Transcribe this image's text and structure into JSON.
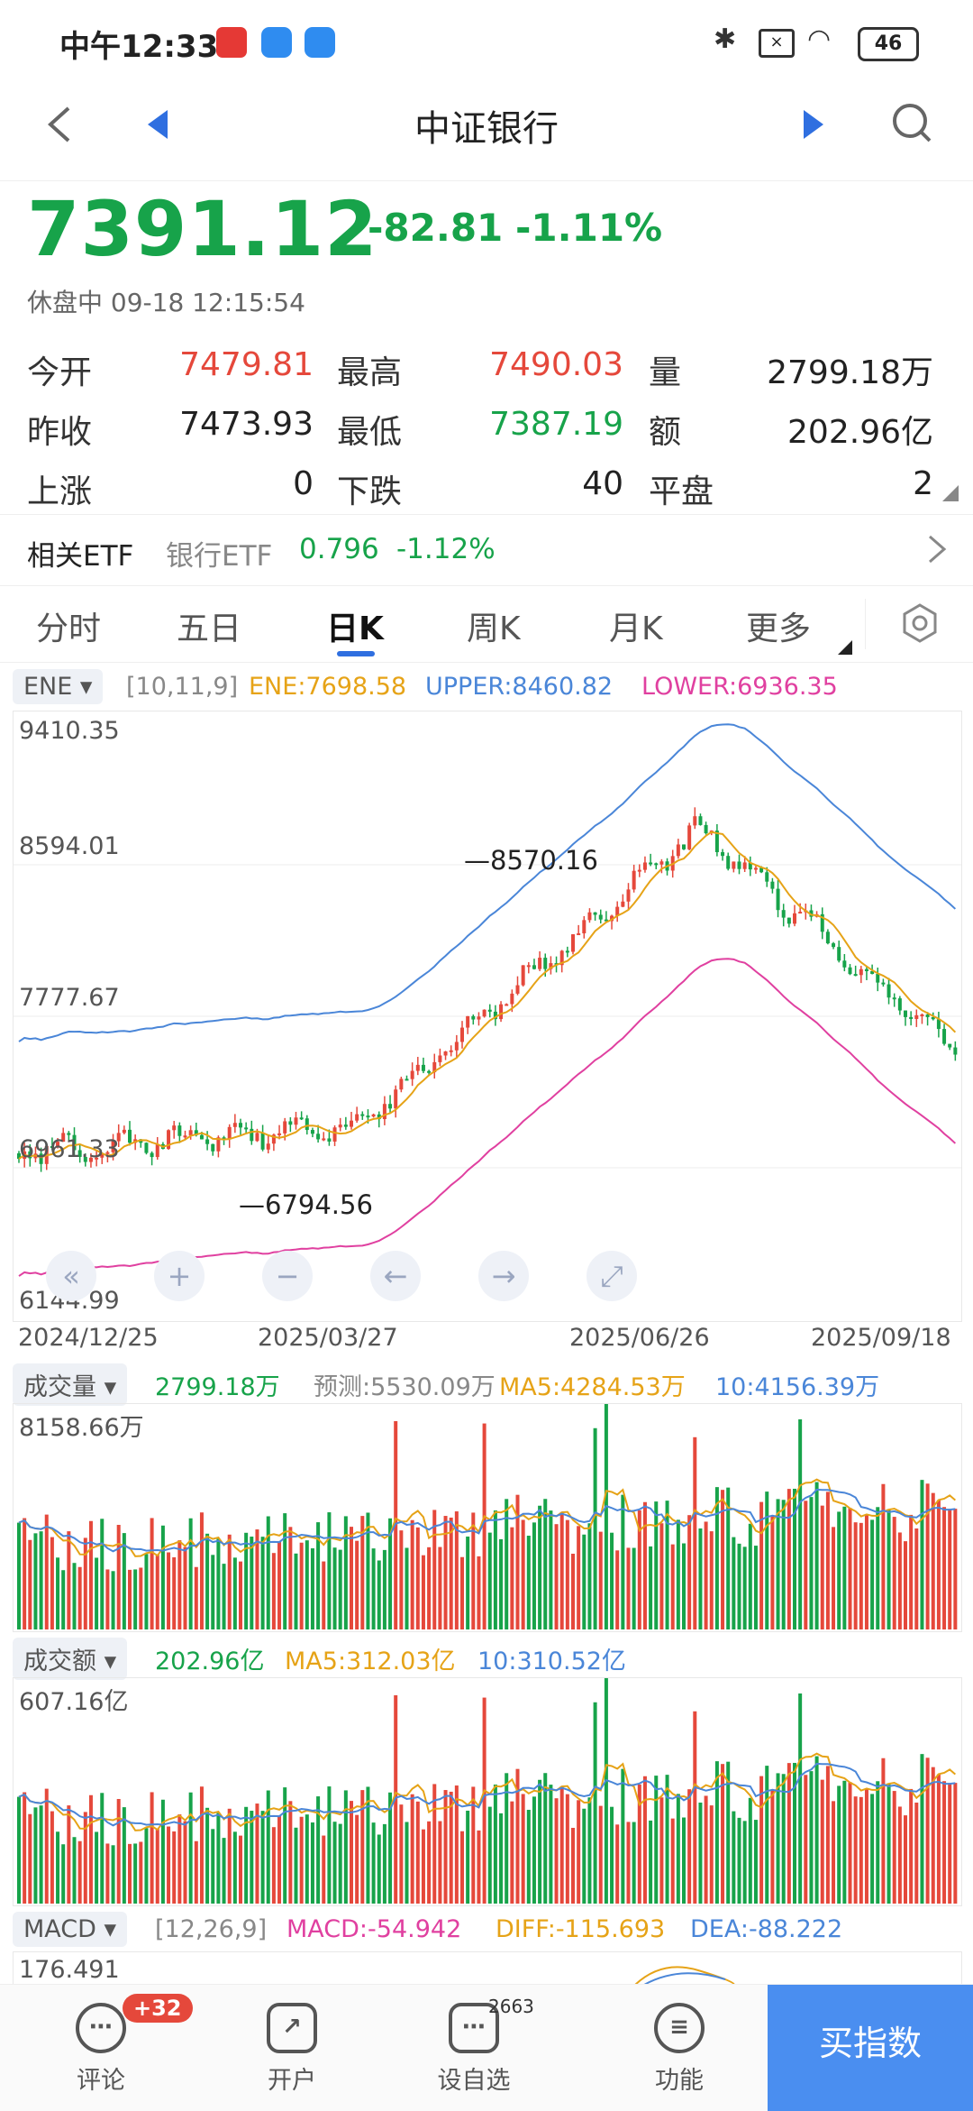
{
  "status_bar": {
    "time": "中午12:33",
    "battery": "46"
  },
  "nav": {
    "title": "中证银行"
  },
  "quote": {
    "price": "7391.12",
    "change": "-82.81",
    "change_pct": "-1.11%",
    "status": "休盘中 09-18 12:15:54"
  },
  "stats": {
    "open_label": "今开",
    "open": "7479.81",
    "high_label": "最高",
    "high": "7490.03",
    "vol_label": "量",
    "vol": "2799.18万",
    "prev_label": "昨收",
    "prev": "7473.93",
    "low_label": "最低",
    "low": "7387.19",
    "amt_label": "额",
    "amt": "202.96亿",
    "up_label": "上涨",
    "up": "0",
    "down_label": "下跌",
    "down": "40",
    "flat_label": "平盘",
    "flat": "2"
  },
  "etf": {
    "label": "相关ETF",
    "name": "银行ETF",
    "price": "0.796",
    "pct": "-1.12%"
  },
  "tabs": [
    "分时",
    "五日",
    "日K",
    "周K",
    "月K",
    "更多"
  ],
  "active_tab": "日K",
  "ene": {
    "selector": "ENE",
    "params": "[10,11,9]",
    "ene": "ENE:7698.58",
    "upper": "UPPER:8460.82",
    "lower": "LOWER:6936.35"
  },
  "kchart": {
    "y_labels": [
      "9410.35",
      "8594.01",
      "7777.67",
      "6961.33",
      "6144.99"
    ],
    "x_labels": [
      "2024/12/25",
      "2025/03/27",
      "2025/06/26",
      "2025/09/18"
    ],
    "high_mark": "8570.16",
    "low_mark": "6794.56"
  },
  "volume": {
    "selector": "成交量",
    "value": "2799.18万",
    "forecast": "预测:5530.09万",
    "ma5": "MA5:4284.53万",
    "ma10": "10:4156.39万",
    "max_label": "8158.66万"
  },
  "amount": {
    "selector": "成交额",
    "value": "202.96亿",
    "ma5": "MA5:312.03亿",
    "ma10": "10:310.52亿",
    "max_label": "607.16亿"
  },
  "macd": {
    "selector": "MACD",
    "params": "[12,26,9]",
    "macd": "MACD:-54.942",
    "diff": "DIFF:-115.693",
    "dea": "DEA:-88.222",
    "max_label": "176.491"
  },
  "bottom_bar": {
    "comment": "评论",
    "comment_badge": "+32",
    "account": "开户",
    "watch": "设自选",
    "watch_count": "2663",
    "func": "功能",
    "buy": "买指数"
  },
  "colors": {
    "up": "#e5483b",
    "down": "#17a34a",
    "ene": "#e6a317",
    "upper": "#4a86d8",
    "lower": "#e040a0",
    "accent": "#3b82f6"
  }
}
